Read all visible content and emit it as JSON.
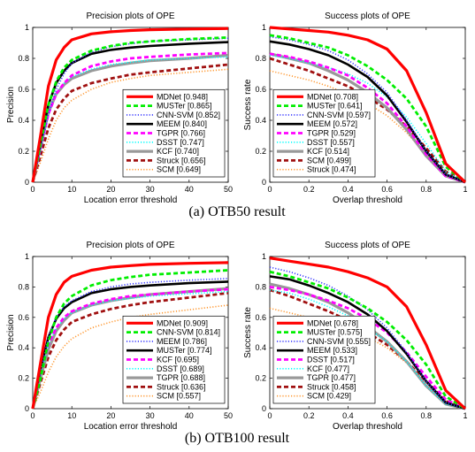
{
  "captions": [
    "(a) OTB50 result",
    "(b) OTB100 result"
  ],
  "chart_data": [
    {
      "type": "line",
      "title": "Precision plots of OPE",
      "xlabel": "Location error threshold",
      "ylabel": "Precision",
      "xlim": [
        0,
        50
      ],
      "ylim": [
        0,
        1
      ],
      "xticks": [
        0,
        10,
        20,
        30,
        40,
        50
      ],
      "yticks": [
        0,
        0.2,
        0.4,
        0.6,
        0.8,
        1
      ],
      "legend_position": "bottom-right",
      "x": [
        0,
        2,
        4,
        6,
        8,
        10,
        15,
        20,
        25,
        30,
        40,
        50
      ],
      "series": [
        {
          "name": "MDNet [0.948]",
          "color": "#ff0000",
          "style": "solid-thick",
          "values": [
            0.0,
            0.3,
            0.62,
            0.79,
            0.87,
            0.92,
            0.958,
            0.972,
            0.98,
            0.985,
            0.99,
            0.993
          ]
        },
        {
          "name": "MUSTer [0.865]",
          "color": "#00ee00",
          "style": "dashed",
          "values": [
            0.0,
            0.24,
            0.5,
            0.65,
            0.74,
            0.79,
            0.85,
            0.88,
            0.9,
            0.91,
            0.925,
            0.935
          ]
        },
        {
          "name": "CNN-SVM [0.852]",
          "color": "#3b3bff",
          "style": "dotted",
          "values": [
            0.0,
            0.2,
            0.44,
            0.6,
            0.7,
            0.77,
            0.84,
            0.875,
            0.895,
            0.91,
            0.92,
            0.93
          ]
        },
        {
          "name": "MEEM [0.840]",
          "color": "#000000",
          "style": "solid",
          "values": [
            0.0,
            0.26,
            0.5,
            0.64,
            0.72,
            0.77,
            0.83,
            0.855,
            0.87,
            0.88,
            0.895,
            0.905
          ]
        },
        {
          "name": "TGPR [0.766]",
          "color": "#ff00ff",
          "style": "dashed",
          "values": [
            0.0,
            0.22,
            0.44,
            0.57,
            0.64,
            0.69,
            0.75,
            0.78,
            0.8,
            0.81,
            0.825,
            0.835
          ]
        },
        {
          "name": "DSST [0.747]",
          "color": "#00ffff",
          "style": "dotted",
          "values": [
            0.0,
            0.24,
            0.46,
            0.58,
            0.64,
            0.68,
            0.73,
            0.76,
            0.775,
            0.79,
            0.8,
            0.81
          ]
        },
        {
          "name": "KCF [0.740]",
          "color": "#999999",
          "style": "solid-thick",
          "values": [
            0.0,
            0.23,
            0.45,
            0.57,
            0.63,
            0.67,
            0.72,
            0.75,
            0.77,
            0.785,
            0.8,
            0.82
          ]
        },
        {
          "name": "Struck [0.656]",
          "color": "#a01010",
          "style": "dashed",
          "values": [
            0.0,
            0.17,
            0.35,
            0.47,
            0.54,
            0.59,
            0.64,
            0.67,
            0.695,
            0.71,
            0.735,
            0.76
          ]
        },
        {
          "name": "SCM [0.649]",
          "color": "#ff9933",
          "style": "dotted",
          "values": [
            0.0,
            0.13,
            0.28,
            0.4,
            0.48,
            0.53,
            0.6,
            0.645,
            0.67,
            0.69,
            0.71,
            0.73
          ]
        }
      ]
    },
    {
      "type": "line",
      "title": "Success plots of OPE",
      "xlabel": "Overlap threshold",
      "ylabel": "Success rate",
      "xlim": [
        0,
        1
      ],
      "ylim": [
        0,
        1
      ],
      "xticks": [
        0,
        0.2,
        0.4,
        0.6,
        0.8,
        1
      ],
      "yticks": [
        0,
        0.2,
        0.4,
        0.6,
        0.8,
        1
      ],
      "legend_position": "bottom-left",
      "x": [
        0,
        0.1,
        0.2,
        0.3,
        0.4,
        0.5,
        0.6,
        0.7,
        0.8,
        0.9,
        1.0
      ],
      "series": [
        {
          "name": "MDNet [0.708]",
          "color": "#ff0000",
          "style": "solid-thick",
          "values": [
            1.0,
            0.99,
            0.98,
            0.97,
            0.95,
            0.92,
            0.86,
            0.72,
            0.45,
            0.12,
            0.0
          ]
        },
        {
          "name": "MUSTer [0.641]",
          "color": "#00ee00",
          "style": "dashed",
          "values": [
            0.95,
            0.93,
            0.9,
            0.87,
            0.82,
            0.75,
            0.66,
            0.54,
            0.36,
            0.1,
            0.0
          ]
        },
        {
          "name": "CNN-SVM [0.597]",
          "color": "#3b3bff",
          "style": "dotted",
          "values": [
            0.94,
            0.92,
            0.89,
            0.85,
            0.79,
            0.7,
            0.58,
            0.4,
            0.2,
            0.05,
            0.0
          ]
        },
        {
          "name": "MEEM [0.572]",
          "color": "#000000",
          "style": "solid",
          "values": [
            0.91,
            0.89,
            0.86,
            0.82,
            0.76,
            0.68,
            0.56,
            0.39,
            0.2,
            0.05,
            0.0
          ]
        },
        {
          "name": "TGPR [0.529]",
          "color": "#ff00ff",
          "style": "dashed",
          "values": [
            0.83,
            0.81,
            0.78,
            0.74,
            0.69,
            0.61,
            0.51,
            0.36,
            0.18,
            0.04,
            0.0
          ]
        },
        {
          "name": "DSST [0.557]",
          "color": "#00ffff",
          "style": "dotted",
          "values": [
            0.82,
            0.8,
            0.77,
            0.74,
            0.7,
            0.64,
            0.55,
            0.42,
            0.25,
            0.07,
            0.0
          ]
        },
        {
          "name": "KCF [0.514]",
          "color": "#999999",
          "style": "solid-thick",
          "values": [
            0.83,
            0.8,
            0.77,
            0.72,
            0.66,
            0.58,
            0.48,
            0.34,
            0.17,
            0.04,
            0.0
          ]
        },
        {
          "name": "SCM [0.499]",
          "color": "#a01010",
          "style": "dashed",
          "values": [
            0.8,
            0.76,
            0.72,
            0.67,
            0.62,
            0.55,
            0.47,
            0.36,
            0.22,
            0.07,
            0.0
          ]
        },
        {
          "name": "Struck [0.474]",
          "color": "#ff9933",
          "style": "dotted",
          "values": [
            0.72,
            0.69,
            0.66,
            0.62,
            0.57,
            0.51,
            0.43,
            0.32,
            0.18,
            0.05,
            0.0
          ]
        }
      ]
    },
    {
      "type": "line",
      "title": "Precision plots of OPE",
      "xlabel": "Location error threshold",
      "ylabel": "Precision",
      "xlim": [
        0,
        50
      ],
      "ylim": [
        0,
        1
      ],
      "xticks": [
        0,
        10,
        20,
        30,
        40,
        50
      ],
      "yticks": [
        0,
        0.2,
        0.4,
        0.6,
        0.8,
        1
      ],
      "legend_position": "bottom-right",
      "x": [
        0,
        2,
        4,
        6,
        8,
        10,
        15,
        20,
        25,
        30,
        40,
        50
      ],
      "series": [
        {
          "name": "MDNet [0.909]",
          "color": "#ff0000",
          "style": "solid-thick",
          "values": [
            0.0,
            0.3,
            0.6,
            0.75,
            0.83,
            0.87,
            0.91,
            0.93,
            0.94,
            0.948,
            0.955,
            0.96
          ]
        },
        {
          "name": "CNN-SVM [0.814]",
          "color": "#00ee00",
          "style": "dashed",
          "values": [
            0.0,
            0.2,
            0.44,
            0.6,
            0.69,
            0.74,
            0.81,
            0.845,
            0.865,
            0.88,
            0.895,
            0.91
          ]
        },
        {
          "name": "MEEM [0.786]",
          "color": "#3b3bff",
          "style": "dotted",
          "values": [
            0.0,
            0.24,
            0.47,
            0.6,
            0.67,
            0.71,
            0.77,
            0.8,
            0.82,
            0.83,
            0.845,
            0.855
          ]
        },
        {
          "name": "MUSTer [0.774]",
          "color": "#000000",
          "style": "solid",
          "values": [
            0.0,
            0.26,
            0.47,
            0.59,
            0.66,
            0.7,
            0.76,
            0.785,
            0.8,
            0.81,
            0.825,
            0.835
          ]
        },
        {
          "name": "KCF [0.695]",
          "color": "#ff00ff",
          "style": "dashed",
          "values": [
            0.0,
            0.22,
            0.42,
            0.53,
            0.6,
            0.64,
            0.69,
            0.72,
            0.74,
            0.75,
            0.77,
            0.785
          ]
        },
        {
          "name": "DSST [0.689]",
          "color": "#00ffff",
          "style": "dotted",
          "values": [
            0.0,
            0.23,
            0.42,
            0.53,
            0.59,
            0.63,
            0.68,
            0.71,
            0.725,
            0.74,
            0.755,
            0.77
          ]
        },
        {
          "name": "TGPR [0.688]",
          "color": "#999999",
          "style": "solid-thick",
          "values": [
            0.0,
            0.2,
            0.39,
            0.51,
            0.58,
            0.63,
            0.68,
            0.71,
            0.73,
            0.75,
            0.77,
            0.79
          ]
        },
        {
          "name": "Struck [0.636]",
          "color": "#a01010",
          "style": "dashed",
          "values": [
            0.0,
            0.17,
            0.34,
            0.45,
            0.52,
            0.57,
            0.62,
            0.655,
            0.68,
            0.7,
            0.73,
            0.76
          ]
        },
        {
          "name": "SCM [0.557]",
          "color": "#ff9933",
          "style": "dotted",
          "values": [
            0.0,
            0.11,
            0.24,
            0.34,
            0.41,
            0.46,
            0.53,
            0.57,
            0.6,
            0.62,
            0.65,
            0.68
          ]
        }
      ]
    },
    {
      "type": "line",
      "title": "Success plots of OPE",
      "xlabel": "Overlap threshold",
      "ylabel": "Success rate",
      "xlim": [
        0,
        1
      ],
      "ylim": [
        0,
        1
      ],
      "xticks": [
        0,
        0.2,
        0.4,
        0.6,
        0.8,
        1
      ],
      "yticks": [
        0,
        0.2,
        0.4,
        0.6,
        0.8,
        1
      ],
      "legend_position": "bottom-left",
      "x": [
        0,
        0.1,
        0.2,
        0.3,
        0.4,
        0.5,
        0.6,
        0.7,
        0.8,
        0.9,
        1.0
      ],
      "series": [
        {
          "name": "MDNet [0.678]",
          "color": "#ff0000",
          "style": "solid-thick",
          "values": [
            0.99,
            0.97,
            0.95,
            0.93,
            0.9,
            0.86,
            0.8,
            0.67,
            0.42,
            0.12,
            0.0
          ]
        },
        {
          "name": "MUSTer [0.575]",
          "color": "#00ee00",
          "style": "dashed",
          "values": [
            0.9,
            0.87,
            0.83,
            0.79,
            0.73,
            0.66,
            0.57,
            0.45,
            0.29,
            0.08,
            0.0
          ]
        },
        {
          "name": "CNN-SVM [0.555]",
          "color": "#3b3bff",
          "style": "dotted",
          "values": [
            0.93,
            0.9,
            0.86,
            0.81,
            0.74,
            0.65,
            0.53,
            0.37,
            0.18,
            0.04,
            0.0
          ]
        },
        {
          "name": "MEEM [0.533]",
          "color": "#000000",
          "style": "solid",
          "values": [
            0.87,
            0.85,
            0.81,
            0.76,
            0.7,
            0.62,
            0.51,
            0.36,
            0.18,
            0.04,
            0.0
          ]
        },
        {
          "name": "DSST [0.517]",
          "color": "#ff00ff",
          "style": "dashed",
          "values": [
            0.8,
            0.78,
            0.75,
            0.71,
            0.66,
            0.59,
            0.5,
            0.37,
            0.21,
            0.06,
            0.0
          ]
        },
        {
          "name": "KCF [0.477]",
          "color": "#00ffff",
          "style": "dotted",
          "values": [
            0.78,
            0.76,
            0.72,
            0.67,
            0.61,
            0.53,
            0.44,
            0.31,
            0.15,
            0.03,
            0.0
          ]
        },
        {
          "name": "TGPR [0.477]",
          "color": "#999999",
          "style": "solid-thick",
          "values": [
            0.82,
            0.79,
            0.75,
            0.7,
            0.63,
            0.54,
            0.44,
            0.31,
            0.15,
            0.03,
            0.0
          ]
        },
        {
          "name": "Struck [0.458]",
          "color": "#a01010",
          "style": "dashed",
          "values": [
            0.78,
            0.74,
            0.69,
            0.64,
            0.58,
            0.5,
            0.42,
            0.31,
            0.18,
            0.05,
            0.0
          ]
        },
        {
          "name": "SCM [0.429]",
          "color": "#ff9933",
          "style": "dotted",
          "values": [
            0.66,
            0.63,
            0.6,
            0.56,
            0.52,
            0.47,
            0.4,
            0.3,
            0.18,
            0.05,
            0.0
          ]
        }
      ]
    }
  ]
}
